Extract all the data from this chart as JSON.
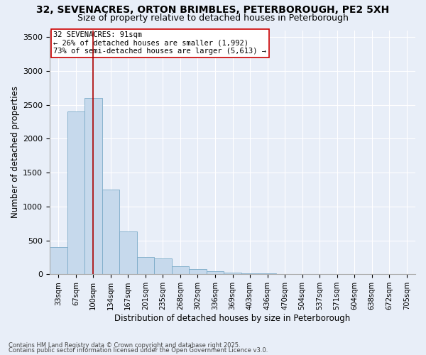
{
  "title1": "32, SEVENACRES, ORTON BRIMBLES, PETERBOROUGH, PE2 5XH",
  "title2": "Size of property relative to detached houses in Peterborough",
  "xlabel": "Distribution of detached houses by size in Peterborough",
  "ylabel": "Number of detached properties",
  "bar_labels": [
    "33sqm",
    "67sqm",
    "100sqm",
    "134sqm",
    "167sqm",
    "201sqm",
    "235sqm",
    "268sqm",
    "302sqm",
    "336sqm",
    "369sqm",
    "403sqm",
    "436sqm",
    "470sqm",
    "504sqm",
    "537sqm",
    "571sqm",
    "604sqm",
    "638sqm",
    "672sqm",
    "705sqm"
  ],
  "bar_values": [
    400,
    2400,
    2600,
    1250,
    630,
    260,
    230,
    120,
    80,
    50,
    20,
    15,
    10,
    8,
    5,
    3,
    2,
    1,
    1,
    0,
    0
  ],
  "bar_color": "#c6d9ec",
  "bar_edge_color": "#7baac8",
  "vline_x": 2,
  "vline_color": "#aa0000",
  "annotation_text": "32 SEVENACRES: 91sqm\n← 26% of detached houses are smaller (1,992)\n73% of semi-detached houses are larger (5,613) →",
  "annotation_box_color": "#ffffff",
  "annotation_box_edge": "#cc0000",
  "ylim": [
    0,
    3600
  ],
  "yticks": [
    0,
    500,
    1000,
    1500,
    2000,
    2500,
    3000,
    3500
  ],
  "background_color": "#e8eef8",
  "plot_bg_color": "#e8eef8",
  "footer1": "Contains HM Land Registry data © Crown copyright and database right 2025.",
  "footer2": "Contains public sector information licensed under the Open Government Licence v3.0.",
  "grid_color": "#ffffff",
  "title_fontsize": 10,
  "subtitle_fontsize": 9
}
